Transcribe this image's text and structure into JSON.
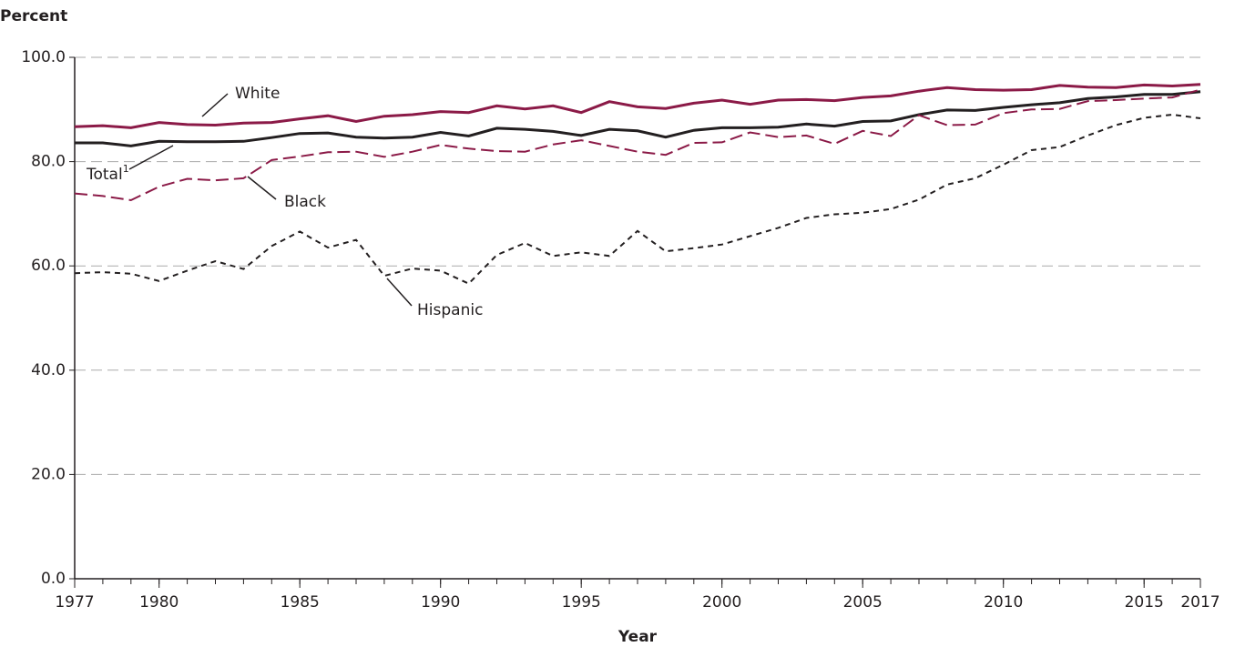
{
  "chart_data": {
    "type": "line",
    "y_axis_title": "Percent",
    "x_axis_title": "Year",
    "x": [
      1977,
      1978,
      1979,
      1980,
      1981,
      1982,
      1983,
      1984,
      1985,
      1986,
      1987,
      1988,
      1989,
      1990,
      1991,
      1992,
      1993,
      1994,
      1995,
      1996,
      1997,
      1998,
      1999,
      2000,
      2001,
      2002,
      2003,
      2004,
      2005,
      2006,
      2007,
      2008,
      2009,
      2010,
      2011,
      2012,
      2013,
      2014,
      2015,
      2016,
      2017
    ],
    "xlim": [
      1977,
      2017
    ],
    "xticks": [
      1977,
      1980,
      1985,
      1990,
      1995,
      2000,
      2005,
      2010,
      2015,
      2017
    ],
    "ylim": [
      0,
      100
    ],
    "yticks": [
      {
        "value": 0,
        "label": "0.0"
      },
      {
        "value": 20,
        "label": "20.0"
      },
      {
        "value": 40,
        "label": "40.0"
      },
      {
        "value": 60,
        "label": "60.0"
      },
      {
        "value": 80,
        "label": "80.0"
      },
      {
        "value": 100,
        "label": "100.0"
      }
    ],
    "grid": true,
    "series": [
      {
        "name": "White",
        "color": "#8b1a47",
        "dash": "solid",
        "values": [
          86.7,
          86.9,
          86.5,
          87.5,
          87.1,
          87.0,
          87.4,
          87.5,
          88.2,
          88.8,
          87.7,
          88.7,
          89.0,
          89.6,
          89.4,
          90.7,
          90.1,
          90.7,
          89.4,
          91.5,
          90.5,
          90.2,
          91.2,
          91.8,
          91.0,
          91.8,
          91.9,
          91.7,
          92.3,
          92.6,
          93.5,
          94.2,
          93.8,
          93.7,
          93.8,
          94.6,
          94.3,
          94.2,
          94.7,
          94.5,
          94.8
        ]
      },
      {
        "name": "Total",
        "name_note": "1",
        "color": "#231f20",
        "dash": "solid",
        "values": [
          83.6,
          83.6,
          83.0,
          83.9,
          83.8,
          83.8,
          83.9,
          84.6,
          85.4,
          85.5,
          84.7,
          84.5,
          84.7,
          85.6,
          84.9,
          86.4,
          86.2,
          85.8,
          85.0,
          86.2,
          85.9,
          84.7,
          86.0,
          86.5,
          86.5,
          86.6,
          87.2,
          86.8,
          87.7,
          87.8,
          89.0,
          89.9,
          89.8,
          90.4,
          90.9,
          91.3,
          92.1,
          92.4,
          92.9,
          92.9,
          93.4
        ]
      },
      {
        "name": "Black",
        "color": "#8b1a47",
        "dash": "long",
        "values": [
          73.9,
          73.4,
          72.6,
          75.2,
          76.7,
          76.4,
          76.8,
          80.3,
          81.0,
          81.8,
          81.9,
          80.9,
          81.9,
          83.2,
          82.5,
          82.0,
          81.9,
          83.3,
          84.1,
          83.0,
          81.9,
          81.3,
          83.6,
          83.7,
          85.6,
          84.7,
          85.0,
          83.4,
          85.9,
          84.9,
          88.9,
          87.0,
          87.1,
          89.3,
          90.0,
          90.1,
          91.6,
          91.8,
          92.1,
          92.3,
          93.8
        ]
      },
      {
        "name": "Hispanic",
        "color": "#231f20",
        "dash": "short",
        "values": [
          58.6,
          58.8,
          58.5,
          57.1,
          59.1,
          60.9,
          59.4,
          63.8,
          66.6,
          63.5,
          65.0,
          58.1,
          59.5,
          59.1,
          56.6,
          62.1,
          64.4,
          61.9,
          62.6,
          61.9,
          66.7,
          62.8,
          63.4,
          64.1,
          65.7,
          67.3,
          69.2,
          69.9,
          70.2,
          70.9,
          72.7,
          75.6,
          76.8,
          79.4,
          82.2,
          82.8,
          85.0,
          87.0,
          88.4,
          89.0,
          88.3
        ]
      }
    ]
  }
}
